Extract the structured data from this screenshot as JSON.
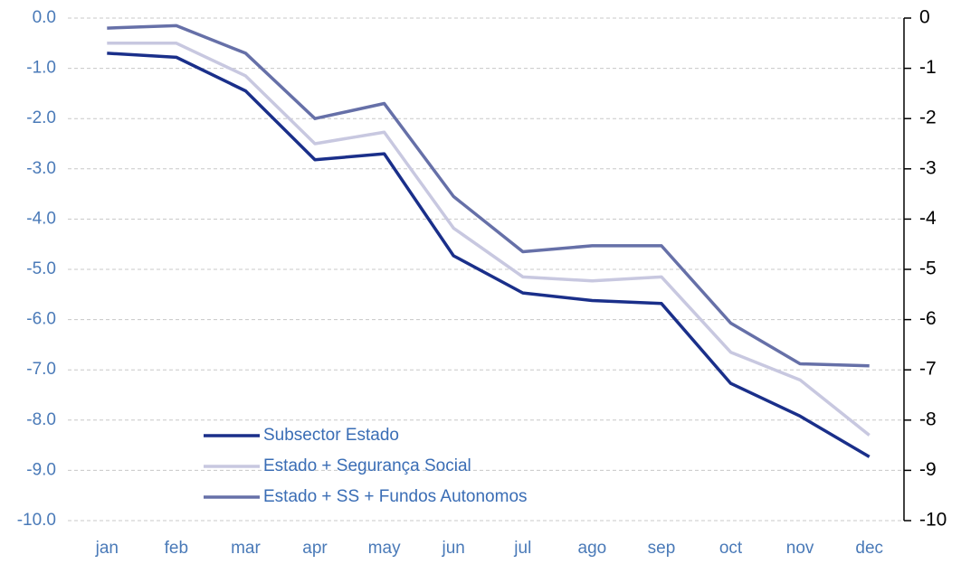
{
  "chart_data": {
    "type": "line",
    "categories": [
      "jan",
      "feb",
      "mar",
      "apr",
      "may",
      "jun",
      "jul",
      "ago",
      "sep",
      "oct",
      "nov",
      "dec"
    ],
    "series": [
      {
        "name": "Subsector Estado",
        "color": "#1a2f8a",
        "values": [
          -0.7,
          -0.78,
          -1.45,
          -2.82,
          -2.7,
          -4.73,
          -5.47,
          -5.62,
          -5.68,
          -7.27,
          -7.92,
          -8.73
        ]
      },
      {
        "name": "Estado + Segurança Social",
        "color": "#c8c8e0",
        "values": [
          -0.5,
          -0.5,
          -1.15,
          -2.5,
          -2.27,
          -4.18,
          -5.15,
          -5.23,
          -5.15,
          -6.65,
          -7.2,
          -8.3
        ]
      },
      {
        "name": "Estado + SS + Fundos Autonomos",
        "color": "#6670a8",
        "values": [
          -0.2,
          -0.15,
          -0.7,
          -2.0,
          -1.7,
          -3.55,
          -4.65,
          -4.53,
          -4.53,
          -6.07,
          -6.88,
          -6.92
        ]
      }
    ],
    "ylim": [
      -10,
      0
    ],
    "yticks": [
      {
        "value": 0,
        "label": "0.0"
      },
      {
        "value": -1,
        "label": "-1.0"
      },
      {
        "value": -2,
        "label": "-2.0"
      },
      {
        "value": -3,
        "label": "-3.0"
      },
      {
        "value": -4,
        "label": "-4.0"
      },
      {
        "value": -5,
        "label": "-5.0"
      },
      {
        "value": -6,
        "label": "-6.0"
      },
      {
        "value": -7,
        "label": "-7.0"
      },
      {
        "value": -8,
        "label": "-8.0"
      },
      {
        "value": -9,
        "label": "-9.0"
      },
      {
        "value": -10,
        "label": "-10.0"
      }
    ],
    "y2lim": [
      -10,
      0
    ],
    "y2ticks": [
      0,
      -1,
      -2,
      -3,
      -4,
      -5,
      -6,
      -7,
      -8,
      -9,
      -10
    ],
    "grid": true
  }
}
